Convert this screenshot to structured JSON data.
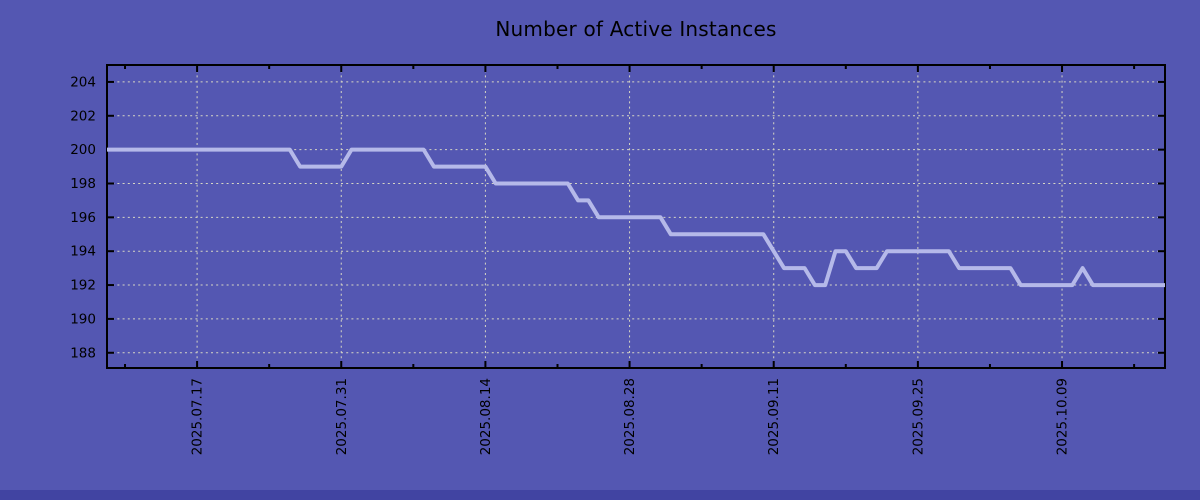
{
  "title": "Number of Active Instances",
  "colors": {
    "background": "#5457b2",
    "line": "#b5b9e9",
    "grid": "#d6d6c4",
    "axis": "#000000",
    "text": "#000000",
    "bottom_strip": "#4144a2"
  },
  "chart_data": {
    "type": "line",
    "title": "Number of Active Instances",
    "xlabel": "",
    "ylabel": "",
    "legend": "none",
    "grid": true,
    "grid_style": "dashed",
    "x_tick_label_rotation_deg": -90,
    "start_date": "2025-07-08",
    "x_unit": "day",
    "daily_values": [
      200,
      200,
      200,
      200,
      200,
      200,
      200,
      200,
      200,
      200,
      200,
      200,
      200,
      200,
      200,
      200,
      200,
      200,
      200,
      199,
      199,
      199,
      199,
      199,
      200,
      200,
      200,
      200,
      200,
      200,
      200,
      200,
      199,
      199,
      199,
      199,
      199,
      199,
      198,
      198,
      198,
      198,
      198,
      198,
      198,
      198,
      197,
      197,
      196,
      196,
      196,
      196,
      196,
      196,
      196,
      195,
      195,
      195,
      195,
      195,
      195,
      195,
      195,
      195,
      195,
      194,
      193,
      193,
      193,
      192,
      192,
      194,
      194,
      193,
      193,
      193,
      194,
      194,
      194,
      194,
      194,
      194,
      194,
      193,
      193,
      193,
      193,
      193,
      193,
      192,
      192,
      192,
      192,
      192,
      192,
      193,
      192,
      192,
      192,
      192,
      192,
      192,
      192,
      192
    ],
    "segments": [
      {
        "from": "2025-07-08",
        "to": "2025-07-26",
        "value": 200
      },
      {
        "from": "2025-07-27",
        "to": "2025-07-31",
        "value": 199
      },
      {
        "from": "2025-08-01",
        "to": "2025-08-08",
        "value": 200
      },
      {
        "from": "2025-08-09",
        "to": "2025-08-14",
        "value": 199
      },
      {
        "from": "2025-08-15",
        "to": "2025-08-22",
        "value": 198
      },
      {
        "from": "2025-08-23",
        "to": "2025-08-24",
        "value": 197
      },
      {
        "from": "2025-08-25",
        "to": "2025-08-31",
        "value": 196
      },
      {
        "from": "2025-09-01",
        "to": "2025-09-10",
        "value": 195
      },
      {
        "from": "2025-09-11",
        "to": "2025-09-11",
        "value": 194
      },
      {
        "from": "2025-09-12",
        "to": "2025-09-14",
        "value": 193
      },
      {
        "from": "2025-09-15",
        "to": "2025-09-16",
        "value": 192
      },
      {
        "from": "2025-09-17",
        "to": "2025-09-18",
        "value": 194
      },
      {
        "from": "2025-09-19",
        "to": "2025-09-21",
        "value": 193
      },
      {
        "from": "2025-09-22",
        "to": "2025-09-28",
        "value": 194
      },
      {
        "from": "2025-09-29",
        "to": "2025-10-04",
        "value": 193
      },
      {
        "from": "2025-10-05",
        "to": "2025-10-10",
        "value": 192
      },
      {
        "from": "2025-10-11",
        "to": "2025-10-11",
        "value": 193
      },
      {
        "from": "2025-10-12",
        "to": "2025-10-19",
        "value": 192
      }
    ],
    "x_major_ticks": [
      "2025.07.17",
      "2025.07.31",
      "2025.08.14",
      "2025.08.28",
      "2025.09.11",
      "2025.09.25",
      "2025.10.09"
    ],
    "x_minor_ticks": [
      "2025.07.10",
      "2025.07.24",
      "2025.08.07",
      "2025.08.21",
      "2025.09.04",
      "2025.09.18",
      "2025.10.02",
      "2025.10.16"
    ],
    "y_ticks": [
      188,
      190,
      192,
      194,
      196,
      198,
      200,
      202,
      204
    ],
    "x_range_days": [
      -8.75,
      94.0
    ],
    "y_range": [
      187.1,
      205.0
    ]
  }
}
